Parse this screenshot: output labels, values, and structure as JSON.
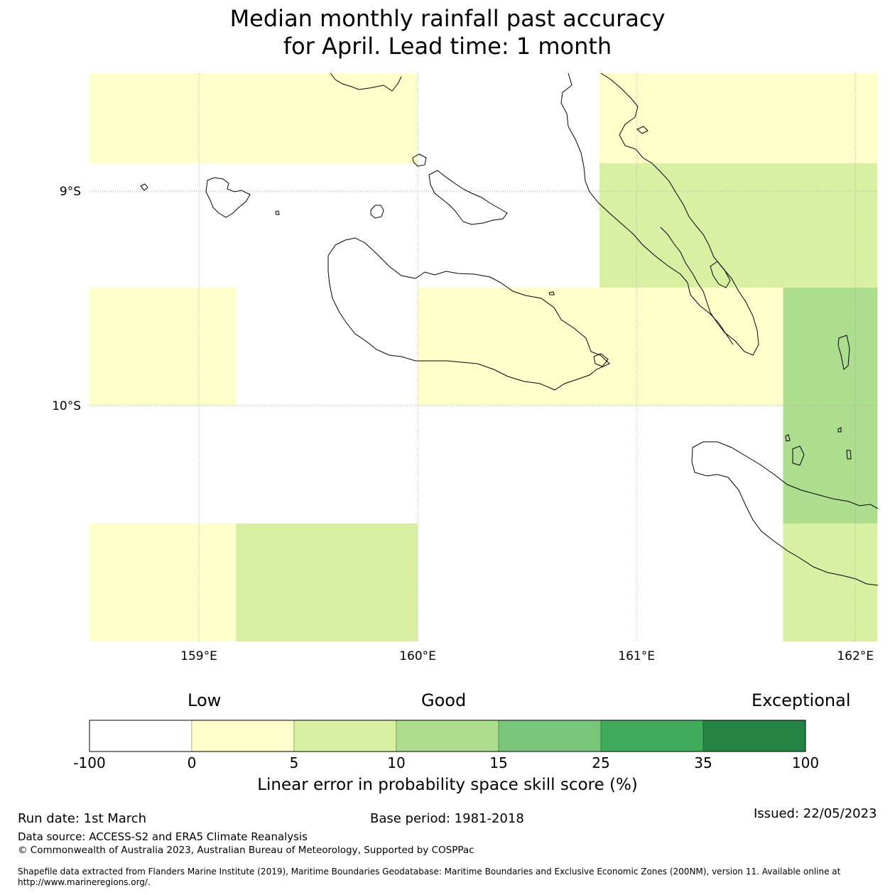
{
  "title": {
    "line1": "Median monthly rainfall past accuracy",
    "line2": "for April. Lead time: 1 month"
  },
  "map": {
    "lon_range": [
      158.5,
      162.1
    ],
    "lat_range": [
      -11.1,
      -8.45
    ],
    "lon_ticks": [
      {
        "value": 159,
        "label": "159°E"
      },
      {
        "value": 160,
        "label": "160°E"
      },
      {
        "value": 161,
        "label": "161°E"
      },
      {
        "value": 162,
        "label": "162°E"
      }
    ],
    "lat_ticks": [
      {
        "value": -9,
        "label": "9°S"
      },
      {
        "value": -10,
        "label": "10°S"
      }
    ],
    "cells": [
      {
        "lon": [
          158.5,
          160.0
        ],
        "lat": [
          -8.87,
          -8.45
        ],
        "category": "0-5"
      },
      {
        "lon": [
          160.83,
          162.1
        ],
        "lat": [
          -8.87,
          -8.45
        ],
        "category": "0-5"
      },
      {
        "lon": [
          160.83,
          162.1
        ],
        "lat": [
          -9.45,
          -8.87
        ],
        "category": "5-10"
      },
      {
        "lon": [
          158.5,
          159.17
        ],
        "lat": [
          -10.0,
          -9.45
        ],
        "category": "0-5"
      },
      {
        "lon": [
          160.0,
          161.67
        ],
        "lat": [
          -10.0,
          -9.45
        ],
        "category": "0-5"
      },
      {
        "lon": [
          161.67,
          162.1
        ],
        "lat": [
          -10.0,
          -9.45
        ],
        "category": "10-15"
      },
      {
        "lon": [
          161.67,
          162.1
        ],
        "lat": [
          -10.55,
          -10.0
        ],
        "category": "10-15"
      },
      {
        "lon": [
          158.5,
          159.17
        ],
        "lat": [
          -11.1,
          -10.55
        ],
        "category": "0-5"
      },
      {
        "lon": [
          159.17,
          160.0
        ],
        "lat": [
          -11.1,
          -10.55
        ],
        "category": "5-10"
      },
      {
        "lon": [
          161.67,
          162.1
        ],
        "lat": [
          -11.1,
          -10.55
        ],
        "category": "5-10"
      }
    ]
  },
  "colorbar": {
    "category_labels": [
      "Low",
      "Good",
      "Exceptional"
    ],
    "ticks": [
      "-100",
      "0",
      "5",
      "10",
      "15",
      "25",
      "35",
      "100"
    ],
    "bins": [
      {
        "range": "-100-0",
        "color": "#ffffff"
      },
      {
        "range": "0-5",
        "color": "#ffffcc"
      },
      {
        "range": "5-10",
        "color": "#d9f0a3"
      },
      {
        "range": "10-15",
        "color": "#addd8e"
      },
      {
        "range": "15-25",
        "color": "#78c679"
      },
      {
        "range": "25-35",
        "color": "#41ab5d"
      },
      {
        "range": "35-100",
        "color": "#238443"
      }
    ],
    "title": "Linear error in probability space skill score (%)"
  },
  "footer": {
    "run_date": "Run date: 1st March",
    "base_period": "Base period: 1981-2018",
    "issued": "Issued: 22/05/2023",
    "data_source": "Data source: ACCESS-S2 and ERA5 Climate Reanalysis",
    "copyright": "© Commonwealth of Australia 2023, Australian Bureau of Meteorology, Supported by COSPPac",
    "shapefile_line1": "Shapefile data extracted from Flanders Marine Institute (2019), Maritime Boundaries Geodatabase: Maritime Boundaries and Exclusive Economic Zones (200NM), version 11. Available online at",
    "shapefile_line2": "http://www.marineregions.org/."
  }
}
